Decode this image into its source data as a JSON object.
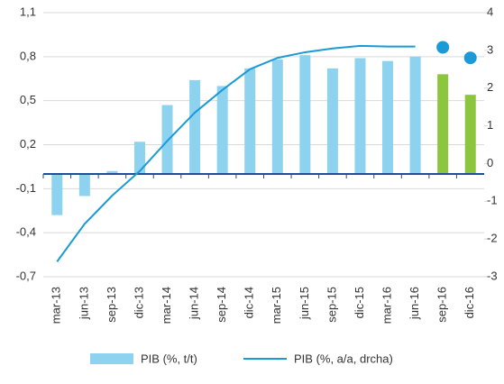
{
  "chart_data": {
    "type": "bar_line",
    "categories": [
      "mar-13",
      "jun-13",
      "sep-13",
      "dic-13",
      "mar-14",
      "jun-14",
      "sep-14",
      "dic-14",
      "mar-15",
      "jun-15",
      "sep-15",
      "dic-15",
      "mar-16",
      "jun-16",
      "sep-16",
      "dic-16"
    ],
    "series": [
      {
        "name": "PIB (%, t/t)",
        "type": "bar",
        "color": "#8dd3f0",
        "colors": [
          "#8dd3f0",
          "#8dd3f0",
          "#8dd3f0",
          "#8dd3f0",
          "#8dd3f0",
          "#8dd3f0",
          "#8dd3f0",
          "#8dd3f0",
          "#8dd3f0",
          "#8dd3f0",
          "#8dd3f0",
          "#8dd3f0",
          "#8dd3f0",
          "#8dd3f0",
          "#8cc63f",
          "#8cc63f"
        ],
        "values": [
          -0.28,
          -0.15,
          0.02,
          0.22,
          0.47,
          0.64,
          0.6,
          0.72,
          0.78,
          0.81,
          0.72,
          0.79,
          0.77,
          0.8,
          0.68,
          0.54
        ]
      },
      {
        "name": "PIB (%, a/a, drcha)",
        "type": "line",
        "axis": "y2",
        "color": "#1a9ad6",
        "values": [
          -2.6,
          -1.6,
          -0.85,
          -0.2,
          0.6,
          1.35,
          1.95,
          2.5,
          2.8,
          2.95,
          3.05,
          3.12,
          3.1,
          3.1,
          null,
          null
        ],
        "forecast_values": [
          null,
          null,
          null,
          null,
          null,
          null,
          null,
          null,
          null,
          null,
          null,
          null,
          null,
          null,
          3.08,
          2.8
        ]
      }
    ],
    "ylim": [
      -0.7,
      1.1
    ],
    "yticks": [
      {
        "value": 1.1,
        "label": "1,1"
      },
      {
        "value": 0.8,
        "label": "0,8"
      },
      {
        "value": 0.5,
        "label": "0,5"
      },
      {
        "value": 0.2,
        "label": "0,2"
      },
      {
        "value": -0.1,
        "label": "-0,1"
      },
      {
        "value": -0.4,
        "label": "-0,4"
      },
      {
        "value": -0.7,
        "label": "-0,7"
      }
    ],
    "y2lim": [
      -3,
      4
    ],
    "y2ticks": [
      4,
      3,
      2,
      1,
      0,
      -1,
      -2,
      -3
    ],
    "grid": true
  }
}
